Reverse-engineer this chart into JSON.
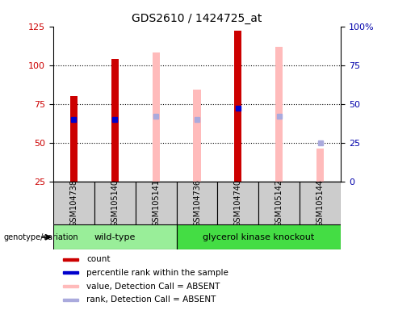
{
  "title": "GDS2610 / 1424725_at",
  "samples": [
    "GSM104738",
    "GSM105140",
    "GSM105141",
    "GSM104736",
    "GSM104740",
    "GSM105142",
    "GSM105144"
  ],
  "bar_values": [
    80,
    104,
    108,
    84,
    122,
    112,
    46
  ],
  "bar_colors": [
    "#cc0000",
    "#cc0000",
    "#ffbbbb",
    "#ffbbbb",
    "#cc0000",
    "#ffbbbb",
    "#ffbbbb"
  ],
  "marker_values": [
    65,
    65,
    67,
    65,
    72,
    67,
    50
  ],
  "marker_colors": [
    "#0000cc",
    "#0000cc",
    "#aaaadd",
    "#aaaadd",
    "#0000cc",
    "#aaaadd",
    "#aaaadd"
  ],
  "ylim_left": [
    25,
    125
  ],
  "yticks_left": [
    25,
    50,
    75,
    100,
    125
  ],
  "yticks_right": [
    0,
    25,
    50,
    75,
    100
  ],
  "ytick_labels_right": [
    "0",
    "25",
    "50",
    "75",
    "100%"
  ],
  "bar_width": 0.18,
  "wt_color": "#99ee99",
  "gko_color": "#44dd44",
  "sample_bg": "#cccccc",
  "legend_items": [
    {
      "label": "count",
      "color": "#cc0000"
    },
    {
      "label": "percentile rank within the sample",
      "color": "#0000cc"
    },
    {
      "label": "value, Detection Call = ABSENT",
      "color": "#ffbbbb"
    },
    {
      "label": "rank, Detection Call = ABSENT",
      "color": "#aaaadd"
    }
  ],
  "wt_samples": [
    0,
    1,
    2
  ],
  "gko_samples": [
    3,
    4,
    5,
    6
  ]
}
